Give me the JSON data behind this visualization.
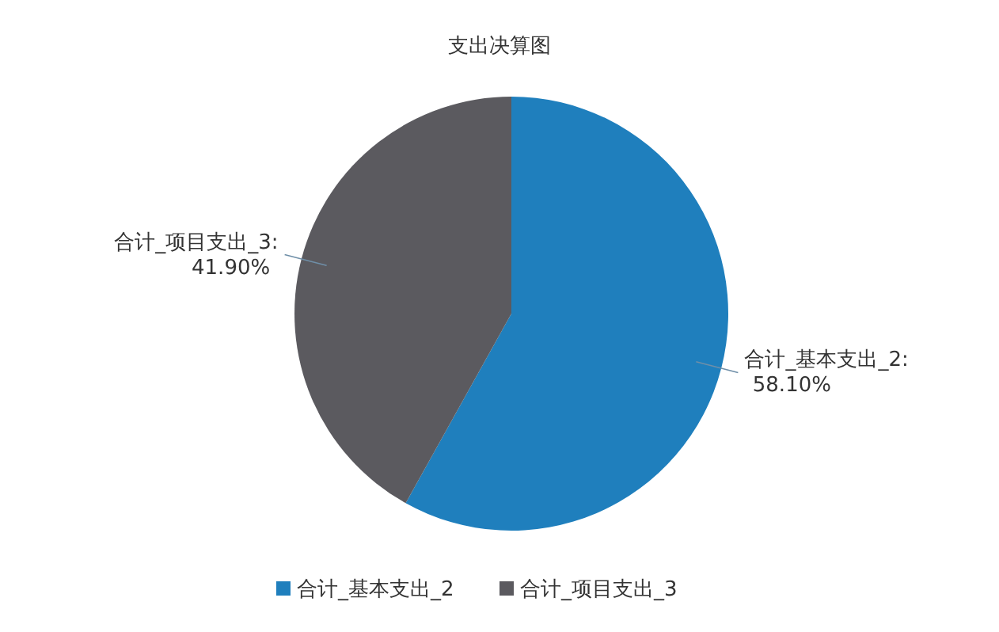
{
  "chart_data": {
    "type": "pie",
    "title": "支出决算图",
    "categories": [
      "合计_基本支出_2",
      "合计_项目支出_3"
    ],
    "values": [
      58.1,
      41.9
    ],
    "colors": [
      "#1f7fbd",
      "#5b5a5f"
    ],
    "value_labels": [
      "合计_基本支出_2:\n58.10%",
      "合计_项目支出_3:\n41.90%"
    ],
    "legend": "bottom"
  }
}
